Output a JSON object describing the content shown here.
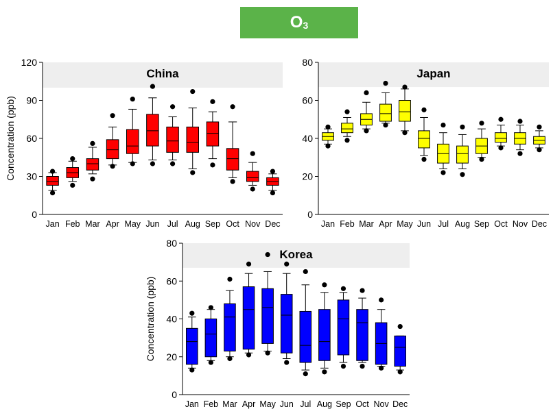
{
  "header": {
    "label_main": "O",
    "label_sub": "3",
    "color": "#5bb349"
  },
  "chart_data": [
    {
      "type": "box",
      "title": "China",
      "ylabel": "Concentration (ppb)",
      "xlabel": "",
      "ylim": [
        0,
        120
      ],
      "yticks": [
        0,
        30,
        60,
        90,
        120
      ],
      "highlight_band": [
        100,
        120
      ],
      "box_color": "#ff0000",
      "categories": [
        "Jan",
        "Feb",
        "Mar",
        "Apr",
        "May",
        "Jun",
        "Jul",
        "Aug",
        "Sep",
        "Oct",
        "Nov",
        "Dec"
      ],
      "boxes": [
        {
          "whisker_low": 19,
          "q1": 23,
          "median": 26,
          "q3": 30,
          "whisker_high": 33,
          "outliers": [
            17,
            34
          ]
        },
        {
          "whisker_low": 26,
          "q1": 29,
          "median": 33,
          "q3": 37,
          "whisker_high": 42,
          "outliers": [
            23,
            44
          ]
        },
        {
          "whisker_low": 32,
          "q1": 35,
          "median": 40,
          "q3": 44,
          "whisker_high": 53,
          "outliers": [
            28,
            56
          ]
        },
        {
          "whisker_low": 39,
          "q1": 44,
          "median": 51,
          "q3": 59,
          "whisker_high": 69,
          "outliers": [
            38,
            78
          ]
        },
        {
          "whisker_low": 41,
          "q1": 48,
          "median": 54,
          "q3": 67,
          "whisker_high": 83,
          "outliers": [
            40,
            91
          ]
        },
        {
          "whisker_low": 43,
          "q1": 54,
          "median": 66,
          "q3": 79,
          "whisker_high": 92,
          "outliers": [
            40,
            101
          ]
        },
        {
          "whisker_low": 43,
          "q1": 49,
          "median": 58,
          "q3": 69,
          "whisker_high": 77,
          "outliers": [
            40,
            85
          ]
        },
        {
          "whisker_low": 36,
          "q1": 49,
          "median": 57,
          "q3": 69,
          "whisker_high": 84,
          "outliers": [
            33,
            97
          ]
        },
        {
          "whisker_low": 44,
          "q1": 54,
          "median": 64,
          "q3": 73,
          "whisker_high": 81,
          "outliers": [
            39,
            89
          ]
        },
        {
          "whisker_low": 29,
          "q1": 35,
          "median": 44,
          "q3": 52,
          "whisker_high": 73,
          "outliers": [
            26,
            85
          ]
        },
        {
          "whisker_low": 23,
          "q1": 26,
          "median": 29,
          "q3": 34,
          "whisker_high": 41,
          "outliers": [
            20,
            48
          ]
        },
        {
          "whisker_low": 19,
          "q1": 23,
          "median": 26,
          "q3": 29,
          "whisker_high": 32,
          "outliers": [
            17,
            34
          ]
        }
      ]
    },
    {
      "type": "box",
      "title": "Japan",
      "ylabel": "",
      "xlabel": "",
      "ylim": [
        0,
        80
      ],
      "yticks": [
        0,
        20,
        40,
        60,
        80
      ],
      "highlight_band": [
        67,
        80
      ],
      "box_color": "#ffff00",
      "categories": [
        "Jan",
        "Feb",
        "Mar",
        "Apr",
        "May",
        "Jun",
        "Jul",
        "Aug",
        "Sep",
        "Oct",
        "Nov",
        "Dec"
      ],
      "boxes": [
        {
          "whisker_low": 37,
          "q1": 39,
          "median": 41,
          "q3": 43,
          "whisker_high": 45,
          "outliers": [
            36,
            46
          ]
        },
        {
          "whisker_low": 41,
          "q1": 43,
          "median": 45,
          "q3": 48,
          "whisker_high": 51,
          "outliers": [
            39,
            54
          ]
        },
        {
          "whisker_low": 45,
          "q1": 47,
          "median": 50,
          "q3": 53,
          "whisker_high": 59,
          "outliers": [
            44,
            64
          ]
        },
        {
          "whisker_low": 48,
          "q1": 49,
          "median": 53,
          "q3": 58,
          "whisker_high": 64,
          "outliers": [
            47,
            69
          ]
        },
        {
          "whisker_low": 44,
          "q1": 49,
          "median": 54,
          "q3": 60,
          "whisker_high": 66,
          "outliers": [
            43,
            67
          ]
        },
        {
          "whisker_low": 31,
          "q1": 35,
          "median": 40,
          "q3": 44,
          "whisker_high": 51,
          "outliers": [
            29,
            55
          ]
        },
        {
          "whisker_low": 24,
          "q1": 27,
          "median": 32,
          "q3": 37,
          "whisker_high": 43,
          "outliers": [
            22,
            47
          ]
        },
        {
          "whisker_low": 24,
          "q1": 27,
          "median": 32,
          "q3": 36,
          "whisker_high": 42,
          "outliers": [
            21,
            46
          ]
        },
        {
          "whisker_low": 30,
          "q1": 32,
          "median": 36,
          "q3": 40,
          "whisker_high": 45,
          "outliers": [
            29,
            48
          ]
        },
        {
          "whisker_low": 36,
          "q1": 38,
          "median": 40,
          "q3": 43,
          "whisker_high": 47,
          "outliers": [
            35,
            50
          ]
        },
        {
          "whisker_low": 34,
          "q1": 37,
          "median": 40,
          "q3": 43,
          "whisker_high": 47,
          "outliers": [
            32,
            49
          ]
        },
        {
          "whisker_low": 35,
          "q1": 37,
          "median": 39,
          "q3": 41,
          "whisker_high": 44,
          "outliers": [
            34,
            46
          ]
        }
      ]
    },
    {
      "type": "box",
      "title": "Korea",
      "ylabel": "Concentration (ppb)",
      "xlabel": "",
      "ylim": [
        0,
        80
      ],
      "yticks": [
        0,
        20,
        40,
        60,
        80
      ],
      "highlight_band": [
        67,
        80
      ],
      "box_color": "#0000ff",
      "categories": [
        "Jan",
        "Feb",
        "Mar",
        "Apr",
        "May",
        "Jun",
        "Jul",
        "Aug",
        "Sep",
        "Oct",
        "Nov",
        "Dec"
      ],
      "boxes": [
        {
          "whisker_low": 14,
          "q1": 16,
          "median": 28,
          "q3": 35,
          "whisker_high": 41,
          "outliers": [
            13,
            43
          ]
        },
        {
          "whisker_low": 18,
          "q1": 20,
          "median": 32,
          "q3": 40,
          "whisker_high": 45,
          "outliers": [
            17,
            46
          ]
        },
        {
          "whisker_low": 20,
          "q1": 23,
          "median": 41,
          "q3": 48,
          "whisker_high": 55,
          "outliers": [
            19,
            61
          ]
        },
        {
          "whisker_low": 22,
          "q1": 24,
          "median": 45,
          "q3": 57,
          "whisker_high": 64,
          "outliers": [
            21,
            69
          ]
        },
        {
          "whisker_low": 23,
          "q1": 27,
          "median": 46,
          "q3": 56,
          "whisker_high": 65,
          "outliers": [
            22,
            74
          ]
        },
        {
          "whisker_low": 19,
          "q1": 22,
          "median": 42,
          "q3": 53,
          "whisker_high": 64,
          "outliers": [
            17,
            69
          ]
        },
        {
          "whisker_low": 13,
          "q1": 17,
          "median": 26,
          "q3": 44,
          "whisker_high": 58,
          "outliers": [
            11,
            65
          ]
        },
        {
          "whisker_low": 14,
          "q1": 18,
          "median": 28,
          "q3": 45,
          "whisker_high": 54,
          "outliers": [
            12,
            58
          ]
        },
        {
          "whisker_low": 17,
          "q1": 21,
          "median": 40,
          "q3": 50,
          "whisker_high": 54,
          "outliers": [
            15,
            56
          ]
        },
        {
          "whisker_low": 17,
          "q1": 18,
          "median": 38,
          "q3": 45,
          "whisker_high": 51,
          "outliers": [
            15,
            55
          ]
        },
        {
          "whisker_low": 15,
          "q1": 16,
          "median": 27,
          "q3": 38,
          "whisker_high": 45,
          "outliers": [
            14,
            50
          ]
        },
        {
          "whisker_low": 13,
          "q1": 15,
          "median": 25,
          "q3": 31,
          "whisker_high": 31,
          "outliers": [
            12,
            36
          ]
        }
      ]
    }
  ]
}
